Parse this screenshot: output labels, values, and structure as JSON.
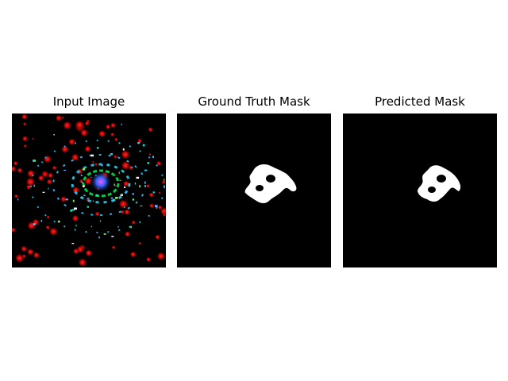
{
  "figure": {
    "panels": [
      {
        "title": "Input Image"
      },
      {
        "title": "Ground Truth Mask"
      },
      {
        "title": "Predicted Mask"
      }
    ]
  },
  "colors": {
    "background": "#000000",
    "mask": "#ffffff",
    "input_dots": "#ff0000",
    "input_ring_green": "#00cc33",
    "input_ring_cyan": "#22bbdd",
    "input_center": "#3366ff"
  }
}
